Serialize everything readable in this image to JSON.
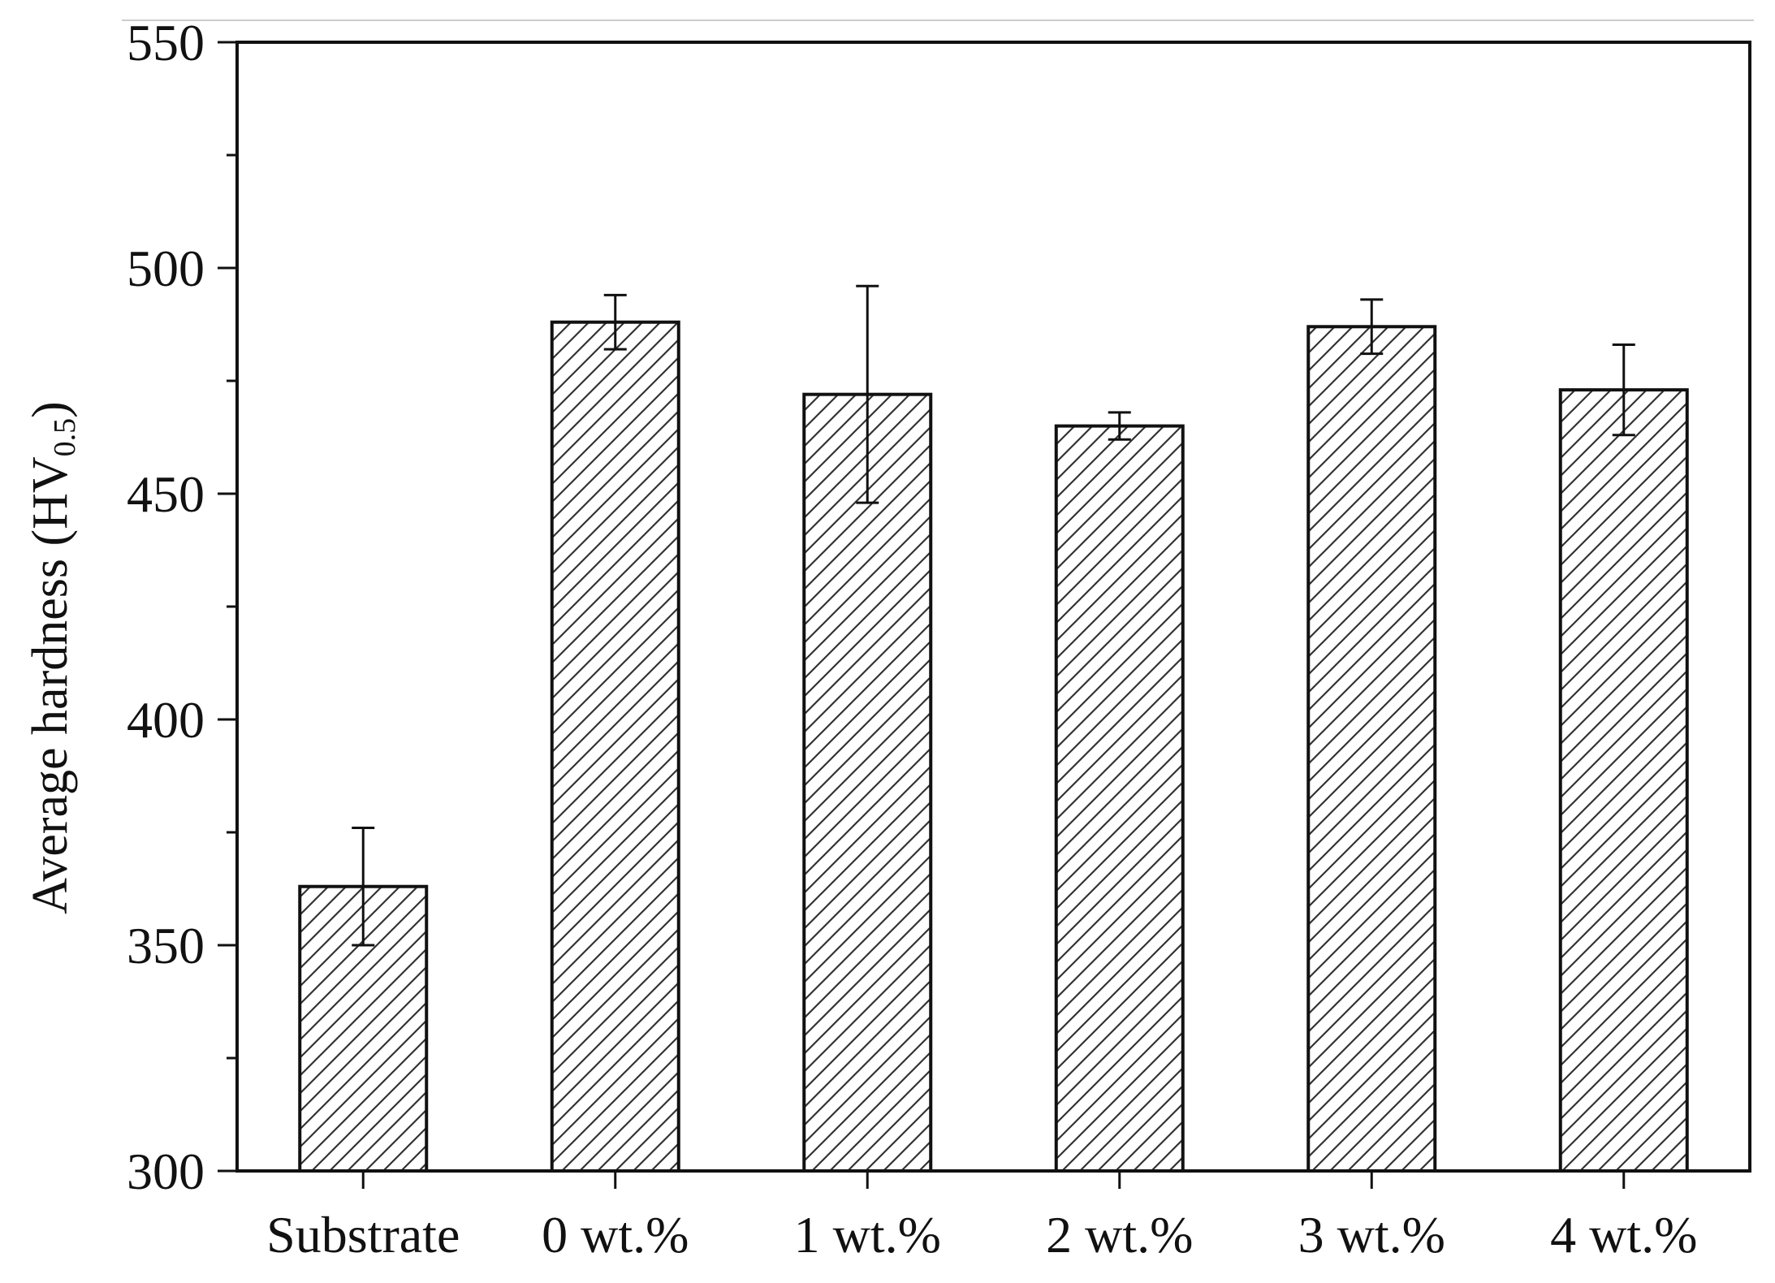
{
  "chart_data": {
    "type": "bar",
    "title": "",
    "xlabel": "",
    "ylabel": {
      "main": "Average hardness (HV",
      "subscript": "0.5",
      "close": ")"
    },
    "categories": [
      "Substrate",
      "0 wt.%",
      "1 wt.%",
      "2 wt.%",
      "3 wt.%",
      "4 wt.%"
    ],
    "values": [
      363,
      488,
      472,
      465,
      487,
      473
    ],
    "errors": [
      13,
      6,
      24,
      3,
      6,
      10
    ],
    "ylim": [
      300,
      550
    ],
    "yticks_major": [
      300,
      350,
      400,
      450,
      500,
      550
    ],
    "ytick_labels": [
      "300",
      "350",
      "400",
      "450",
      "500",
      "550"
    ],
    "yticks_minor": [
      325,
      375,
      425,
      475,
      525
    ],
    "bar_pattern": "diagonal-hatch",
    "bar_fill": "#ffffff",
    "hatch_color": "#333333",
    "edge_color": "#111111",
    "grid": false,
    "legend": "none"
  }
}
